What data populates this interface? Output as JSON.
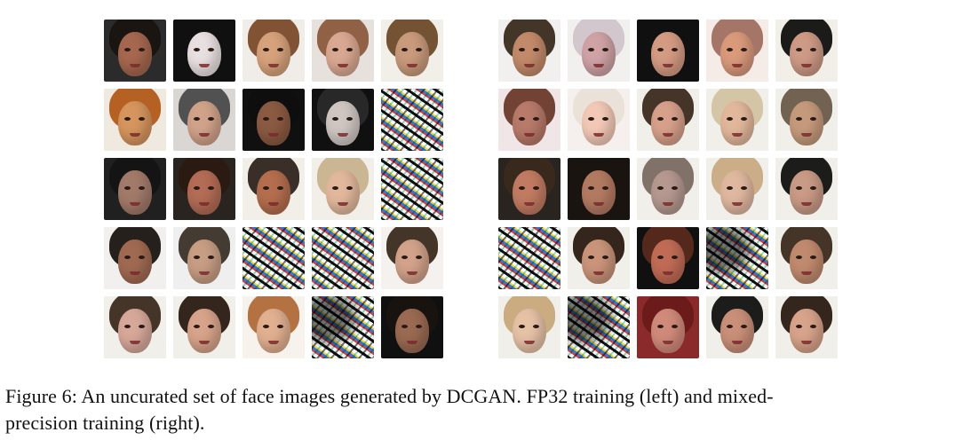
{
  "figure": {
    "caption_line1": "Figure 6: An uncurated set of face images generated by DCGAN. FP32 training (left) and mixed-",
    "caption_line2": "precision training (right).",
    "left_grid": {
      "tiles": [
        {
          "kind": "face",
          "bg": "#2b2b2b",
          "hair": "#1a1411",
          "skin": "#a5674f"
        },
        {
          "kind": "face",
          "bg": "#101010",
          "hair": "#111111",
          "skin": "#e8dfe0"
        },
        {
          "kind": "face",
          "bg": "#f0ede8",
          "hair": "#7a4a2a",
          "skin": "#d6a27b"
        },
        {
          "kind": "face",
          "bg": "#e6e1dd",
          "hair": "#8b5a3c",
          "skin": "#d9a892"
        },
        {
          "kind": "face",
          "bg": "#f2efe8",
          "hair": "#6b4a2a",
          "skin": "#c99a7c"
        },
        {
          "kind": "face",
          "bg": "#f0e9df",
          "hair": "#b25a19",
          "skin": "#d6955e"
        },
        {
          "kind": "face",
          "bg": "#d9d6d3",
          "hair": "#4a4a4a",
          "skin": "#d0a28a"
        },
        {
          "kind": "face",
          "bg": "#101010",
          "hair": "#0f0f0f",
          "skin": "#8b5a42"
        },
        {
          "kind": "face",
          "bg": "#101010",
          "hair": "#2a2a2a",
          "skin": "#cfc6c2"
        },
        {
          "kind": "noise"
        },
        {
          "kind": "face",
          "bg": "#202020",
          "hair": "#141414",
          "skin": "#a27a6a"
        },
        {
          "kind": "face",
          "bg": "#2a2420",
          "hair": "#2a1a12",
          "skin": "#b36c56"
        },
        {
          "kind": "face",
          "bg": "#f2efe9",
          "hair": "#2e231d",
          "skin": "#b46e4e"
        },
        {
          "kind": "face",
          "bg": "#f2efe9",
          "hair": "#c8b28e",
          "skin": "#e2b89c"
        },
        {
          "kind": "noise"
        },
        {
          "kind": "face",
          "bg": "#f1f0ee",
          "hair": "#1a1411",
          "skin": "#a06a52"
        },
        {
          "kind": "face",
          "bg": "#efefef",
          "hair": "#3a3028",
          "skin": "#c79d84"
        },
        {
          "kind": "noise"
        },
        {
          "kind": "noise"
        },
        {
          "kind": "face",
          "bg": "#f4f1ee",
          "hair": "#3a2a1e",
          "skin": "#d2a28a"
        },
        {
          "kind": "face",
          "bg": "#f1efe9",
          "hair": "#3a2a1e",
          "skin": "#d6a89a"
        },
        {
          "kind": "face",
          "bg": "#f1efe9",
          "hair": "#2a1a12",
          "skin": "#d7a38a"
        },
        {
          "kind": "face",
          "bg": "#f7f2ec",
          "hair": "#b06a3a",
          "skin": "#e1b090"
        },
        {
          "kind": "noise",
          "partial": true
        },
        {
          "kind": "face",
          "bg": "#101010",
          "hair": "#1a1411",
          "skin": "#9a6a52"
        }
      ]
    },
    "right_grid": {
      "tiles": [
        {
          "kind": "face",
          "bg": "#f2f0ee",
          "hair": "#3a2a1e",
          "skin": "#c28a6a"
        },
        {
          "kind": "face",
          "bg": "#f1f0ee",
          "hair": "#d0c4c9",
          "skin": "#cfa2a6"
        },
        {
          "kind": "face",
          "bg": "#101010",
          "hair": "#111111",
          "skin": "#d49b83"
        },
        {
          "kind": "face",
          "bg": "#f5ece8",
          "hair": "#a07060",
          "skin": "#d99a7c"
        },
        {
          "kind": "face",
          "bg": "#f2efe8",
          "hair": "#0f0f0f",
          "skin": "#cd9a86"
        },
        {
          "kind": "face",
          "bg": "#f0e6e8",
          "hair": "#6a3a2a",
          "skin": "#b87a6a"
        },
        {
          "kind": "face",
          "bg": "#f5f0ee",
          "hair": "#e9e0d6",
          "skin": "#f2c8b6"
        },
        {
          "kind": "face",
          "bg": "#f1efe9",
          "hair": "#3a2a1e",
          "skin": "#d7a08a"
        },
        {
          "kind": "face",
          "bg": "#f1efe9",
          "hair": "#d2c2a3",
          "skin": "#e2b89c"
        },
        {
          "kind": "face",
          "bg": "#f1efe9",
          "hair": "#6a5a4a",
          "skin": "#c59a7c"
        },
        {
          "kind": "face",
          "bg": "#2a2420",
          "hair": "#3a2a1e",
          "skin": "#c17b62"
        },
        {
          "kind": "face",
          "bg": "#1a1411",
          "hair": "#1a1411",
          "skin": "#b37a62"
        },
        {
          "kind": "face",
          "bg": "#f1efe9",
          "hair": "#7a6a62",
          "skin": "#b5988f"
        },
        {
          "kind": "face",
          "bg": "#f1efe9",
          "hair": "#c8aa82",
          "skin": "#e0b8a0"
        },
        {
          "kind": "face",
          "bg": "#f1efe9",
          "hair": "#101010",
          "skin": "#c99a86"
        },
        {
          "kind": "noise"
        },
        {
          "kind": "face",
          "bg": "#f1efe9",
          "hair": "#2a1a12",
          "skin": "#c9947a"
        },
        {
          "kind": "face",
          "bg": "#101010",
          "hair": "#5a2a1e",
          "skin": "#c06b55"
        },
        {
          "kind": "noise",
          "partial": true
        },
        {
          "kind": "face",
          "bg": "#f1efe9",
          "hair": "#3a2a1e",
          "skin": "#c08a6e"
        },
        {
          "kind": "face",
          "bg": "#f1efe9",
          "hair": "#c8a67a",
          "skin": "#e5c1a6"
        },
        {
          "kind": "noise",
          "partial": true
        },
        {
          "kind": "face",
          "bg": "#8a2a2a",
          "hair": "#6a1a1a",
          "skin": "#d08a7a"
        },
        {
          "kind": "face",
          "bg": "#f1efe9",
          "hair": "#101010",
          "skin": "#c98f78"
        },
        {
          "kind": "face",
          "bg": "#f1efe9",
          "hair": "#2a1a12",
          "skin": "#d7a38a"
        }
      ]
    }
  }
}
